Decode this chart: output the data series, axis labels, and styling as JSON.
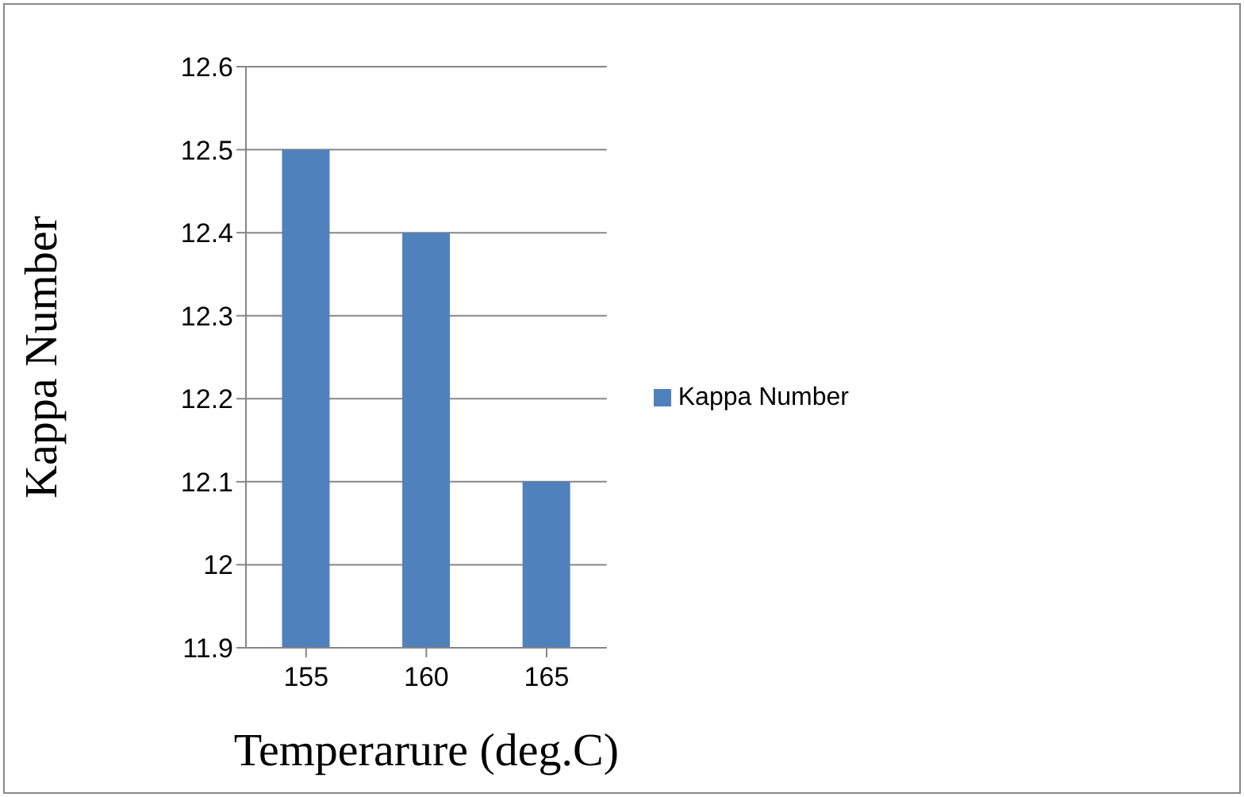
{
  "chart_data": {
    "type": "bar",
    "categories": [
      "155",
      "160",
      "165"
    ],
    "xlabel": "Temperarure (deg.C)",
    "ylabel": "Kappa Number",
    "series": [
      {
        "name": "Kappa Number",
        "color": "#4f81bd",
        "values": [
          12.5,
          12.4,
          12.1
        ]
      }
    ],
    "ylim": [
      11.9,
      12.6
    ],
    "yticks": [
      11.9,
      12,
      12.1,
      12.2,
      12.3,
      12.4,
      12.5,
      12.6
    ],
    "grid": "y",
    "legend": "right"
  }
}
